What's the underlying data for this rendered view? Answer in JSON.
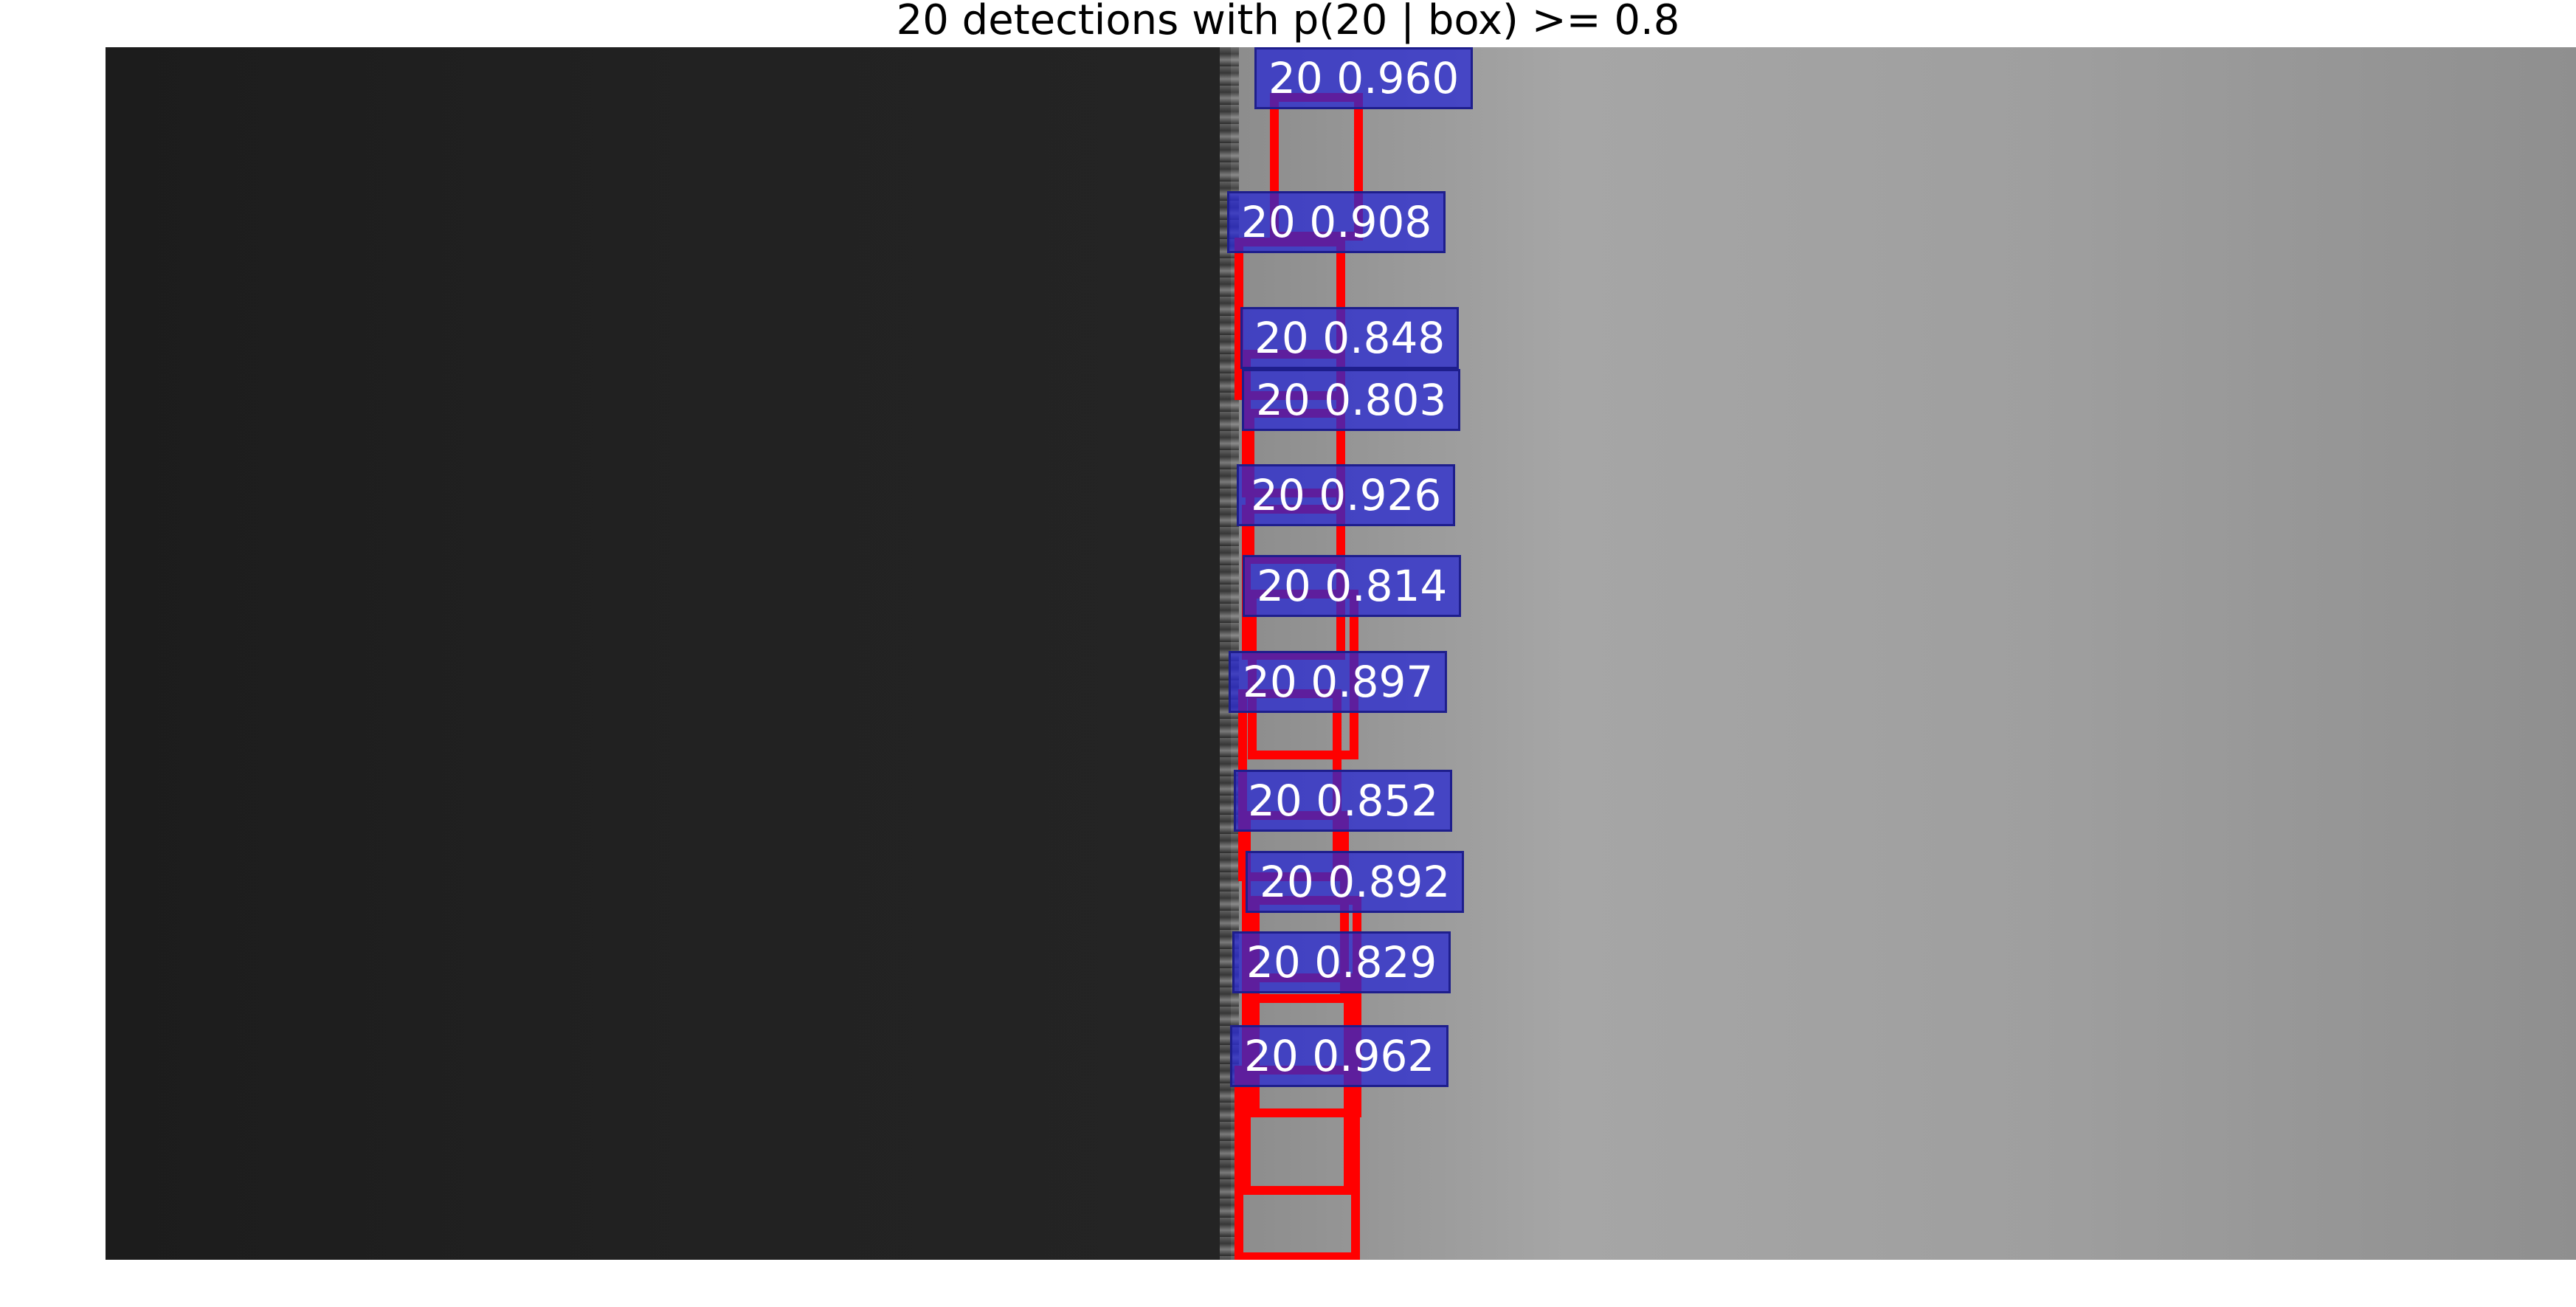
{
  "title": "20 detections with p(20 | box) >= 0.8",
  "colors": {
    "box": "#ff0000",
    "label_bg": "#3333cc",
    "label_text": "#ffffff"
  },
  "detections": [
    {
      "label": "20 0.960"
    },
    {
      "label": "20 0.908"
    },
    {
      "label": "20 0.848"
    },
    {
      "label": "20 0.803"
    },
    {
      "label": "20 0.926"
    },
    {
      "label": "20 0.814"
    },
    {
      "label": "20 0.897"
    },
    {
      "label": "20 0.852"
    },
    {
      "label": "20 0.892"
    },
    {
      "label": "20 0.829"
    },
    {
      "label": "20 0.962"
    }
  ]
}
